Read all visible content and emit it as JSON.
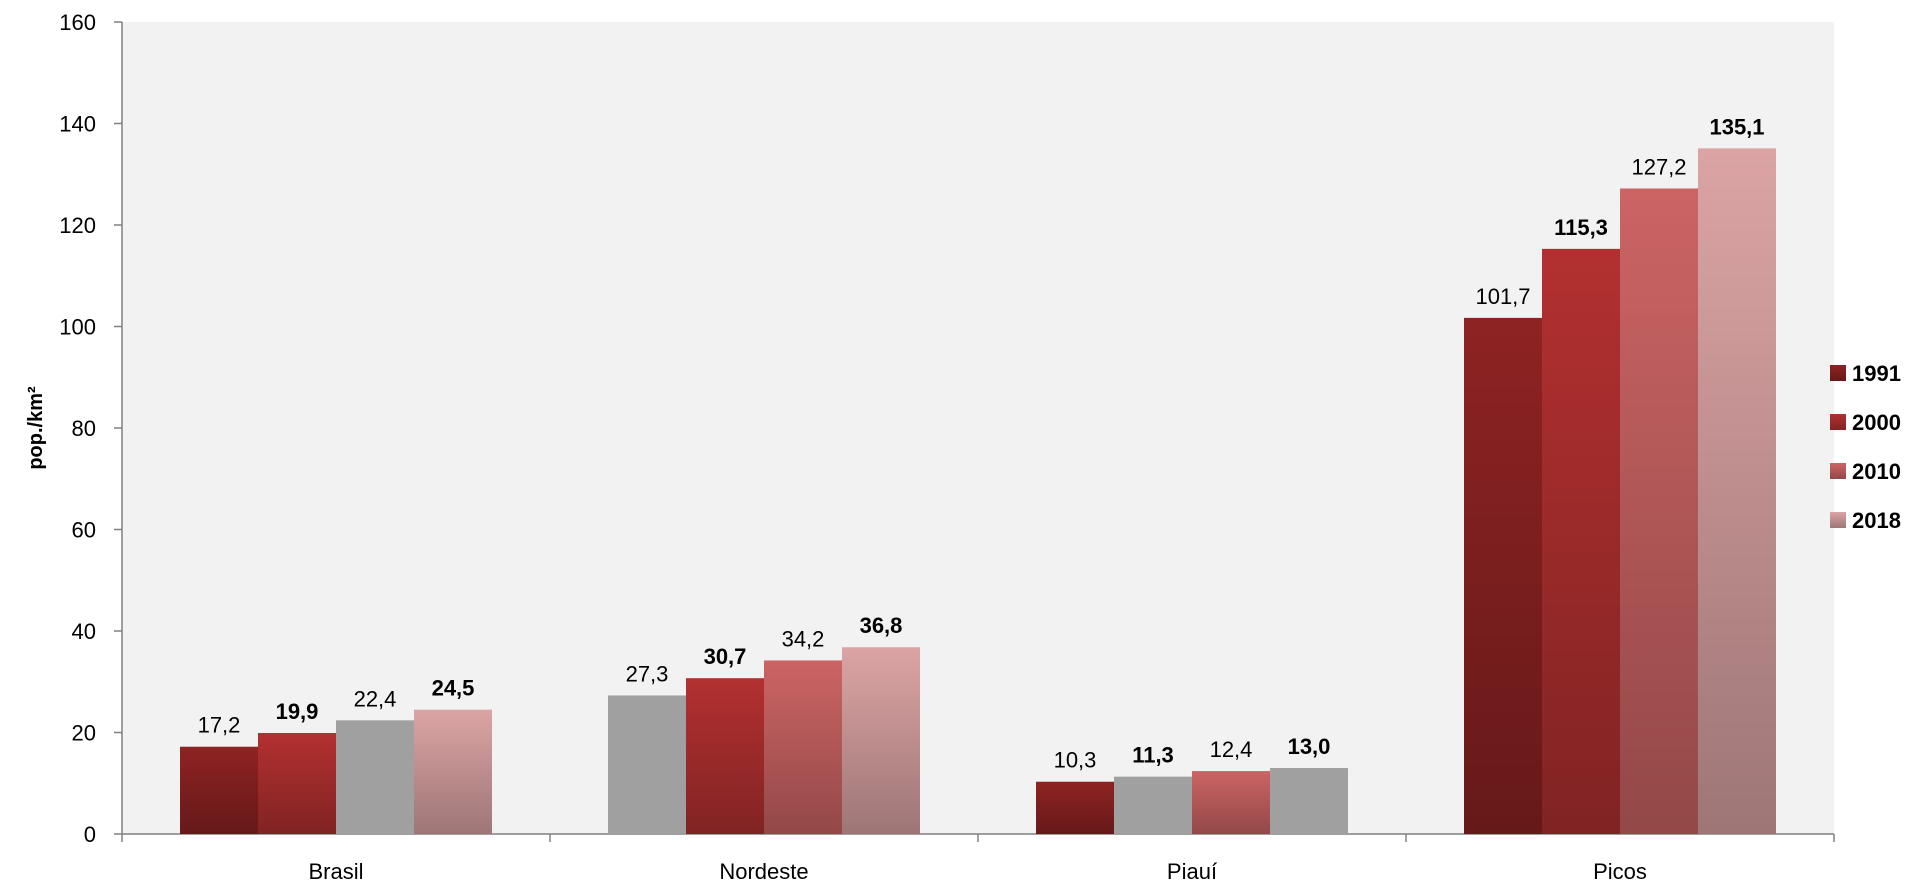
{
  "chart_data": {
    "type": "bar",
    "ylabel": "pop./km²",
    "xlabel": "",
    "ylim": [
      0,
      160
    ],
    "yticks": [
      "0",
      "20",
      "40",
      "60",
      "80",
      "100",
      "120",
      "140",
      "160"
    ],
    "ytick_values": [
      0,
      20,
      40,
      60,
      80,
      100,
      120,
      140,
      160
    ],
    "categories": [
      "Brasil",
      "Nordeste",
      "Piauí",
      "Picos"
    ],
    "legend_position": "right",
    "grid": false,
    "series": [
      {
        "name": "1991",
        "values": [
          17.2,
          27.3,
          10.3,
          101.7
        ],
        "labels": [
          "17,2",
          "27,3",
          "10,3",
          "101,7"
        ],
        "bold": false,
        "color": "#8e2323"
      },
      {
        "name": "2000",
        "values": [
          19.9,
          30.7,
          11.3,
          115.3
        ],
        "labels": [
          "19,9",
          "30,7",
          "11,3",
          "115,3"
        ],
        "bold": true,
        "color": "#b33030"
      },
      {
        "name": "2010",
        "values": [
          22.4,
          34.2,
          12.4,
          127.2
        ],
        "labels": [
          "22,4",
          "34,2",
          "12,4",
          "127,2"
        ],
        "bold": false,
        "color": "#cc6464"
      },
      {
        "name": "2018",
        "values": [
          24.5,
          36.8,
          13.0,
          135.1
        ],
        "labels": [
          "24,5",
          "36,8",
          "13,0",
          "135,1"
        ],
        "bold": true,
        "color": "#dca4a4"
      }
    ],
    "grey_bars": [
      [
        2
      ],
      [
        0
      ],
      [
        1,
        3
      ],
      []
    ],
    "grey_color": "#a0a0a0"
  }
}
